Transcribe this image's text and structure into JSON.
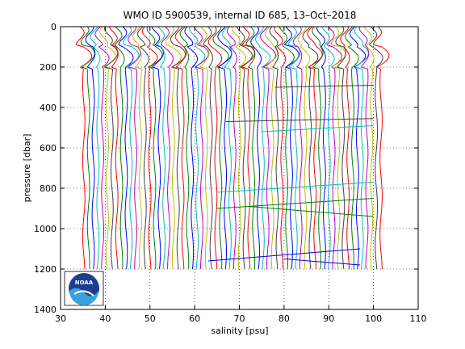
{
  "chart_data": {
    "type": "line",
    "title": "WMO ID 5900539, internal ID 685, 13–Oct–2018",
    "xlabel": "salinity [psu]",
    "ylabel": "pressure [dbar]",
    "xlim": [
      30,
      110
    ],
    "ylim": [
      0,
      1400
    ],
    "y_reversed": true,
    "grid": true,
    "xticks": [
      "30",
      "40",
      "50",
      "60",
      "70",
      "80",
      "90",
      "100",
      "110"
    ],
    "yticks": [
      "0",
      "200",
      "400",
      "600",
      "800",
      "1000",
      "1200",
      "1400"
    ],
    "profiles": {
      "count": 64,
      "salinity_first": 35,
      "salinity_last": 101.5,
      "pressure_min": 0,
      "pressure_max": 1200,
      "palette": [
        "#ff0000",
        "#008000",
        "#0000ff",
        "#00bfbf",
        "#bf00bf",
        "#bfbf00",
        "#404040"
      ]
    },
    "spike_lines": [
      {
        "color": "#00bfbf",
        "x": [
          75,
          100
        ],
        "y": [
          520,
          490
        ]
      },
      {
        "color": "#00bfbf",
        "x": [
          65,
          100
        ],
        "y": [
          820,
          770
        ]
      },
      {
        "color": "#008000",
        "x": [
          65,
          100
        ],
        "y": [
          900,
          850
        ]
      },
      {
        "color": "#008000",
        "x": [
          72,
          100
        ],
        "y": [
          890,
          940
        ]
      },
      {
        "color": "#0000ff",
        "x": [
          63,
          97
        ],
        "y": [
          1160,
          1100
        ]
      },
      {
        "color": "#0000ff",
        "x": [
          80,
          97
        ],
        "y": [
          1150,
          1180
        ]
      },
      {
        "color": "#404040",
        "x": [
          78,
          100
        ],
        "y": [
          300,
          290
        ]
      },
      {
        "color": "#404040",
        "x": [
          67,
          100
        ],
        "y": [
          470,
          455
        ]
      }
    ]
  },
  "logo": {
    "text": "NOAA"
  }
}
